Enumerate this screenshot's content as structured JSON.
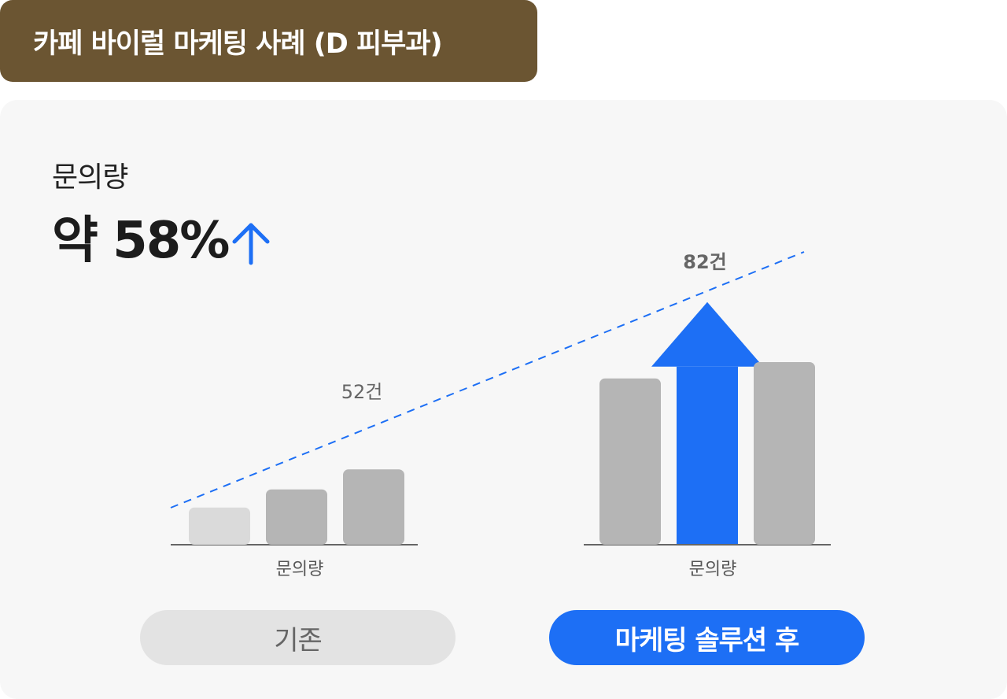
{
  "header": {
    "title": "카페 바이럴 마케팅 사례 (D 피부과)"
  },
  "summary": {
    "metric_label": "문의량",
    "metric_value": "약 58%",
    "trend_icon": "arrow-up-icon"
  },
  "colors": {
    "brand_brown": "#6b5532",
    "accent_blue": "#1d6ff5",
    "bar_gray": "#b5b5b5",
    "bar_light_gray": "#dadada",
    "panel_bg": "#f7f7f7"
  },
  "chart_data": [
    {
      "type": "bar",
      "group_label": "기존",
      "xlabel": "문의량",
      "value_label": "52건",
      "total": 52,
      "bars": [
        {
          "relative_level": 0.2,
          "color": "#dadada"
        },
        {
          "relative_level": 0.3,
          "color": "#b5b5b5"
        },
        {
          "relative_level": 0.41,
          "color": "#b5b5b5"
        }
      ]
    },
    {
      "type": "bar",
      "group_label": "마케팅 솔루션 후",
      "xlabel": "문의량",
      "value_label": "82건",
      "total": 82,
      "bars": [
        {
          "relative_level": 0.91,
          "color": "#b5b5b5"
        },
        {
          "relative_level": 1.33,
          "color": "#1d6ff5",
          "arrow": true
        },
        {
          "relative_level": 1.0,
          "color": "#b5b5b5"
        }
      ]
    }
  ],
  "buttons": {
    "before_label": "기존",
    "after_label": "마케팅 솔루션 후"
  }
}
